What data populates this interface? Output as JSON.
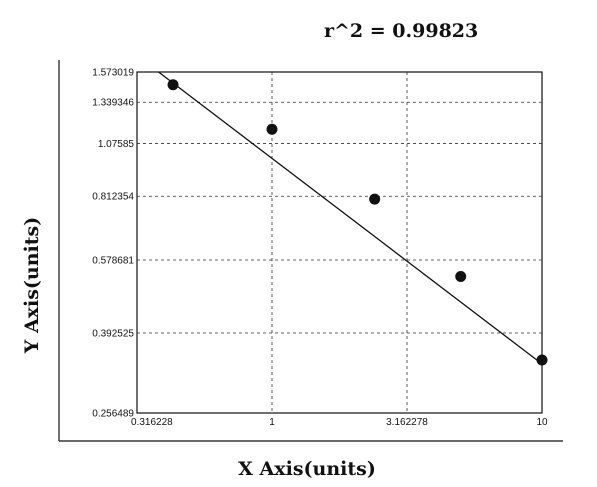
{
  "chart_data": {
    "type": "scatter",
    "annotation": "r^2  =  0.99823",
    "xlabel": "X Axis(units)",
    "ylabel": "Y Axis(units)",
    "x_scale": "log",
    "y_scale": "log",
    "xlim": [
      0.316228,
      10
    ],
    "ylim": [
      0.256489,
      1.573019
    ],
    "x_ticks": [
      "0.316228",
      "1",
      "3.162278",
      "10"
    ],
    "y_ticks": [
      "1.573019",
      "1.339346",
      "1.07585",
      "0.812354",
      "0.578681",
      "0.392525",
      "0.256489"
    ],
    "grid": true,
    "points": [
      {
        "x": 0.43,
        "y": 1.47
      },
      {
        "x": 1.0,
        "y": 1.16
      },
      {
        "x": 2.4,
        "y": 0.8
      },
      {
        "x": 5.0,
        "y": 0.53
      },
      {
        "x": 10.0,
        "y": 0.34
      }
    ],
    "fit_line": {
      "x": [
        0.38,
        10.0
      ],
      "y": [
        1.573019,
        0.333
      ]
    }
  }
}
